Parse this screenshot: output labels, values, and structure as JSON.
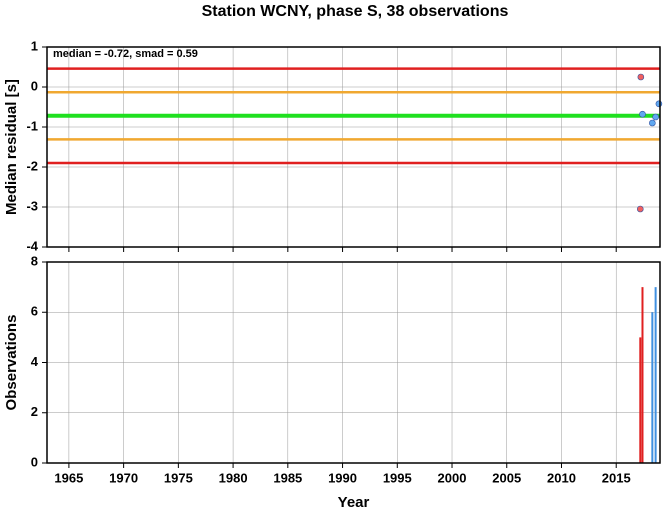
{
  "chart_data": [
    {
      "type": "scatter",
      "title": "Station WCNY, phase S, 38 observations",
      "annotation": "median = -0.72, smad = 0.59",
      "ylabel": "Median residual [s]",
      "xlim": [
        1963,
        2019
      ],
      "ylim": [
        -4,
        1
      ],
      "xticks": [
        1965,
        1970,
        1975,
        1980,
        1985,
        1990,
        1995,
        2000,
        2005,
        2010,
        2015
      ],
      "yticks": [
        -4,
        -3,
        -2,
        -1,
        0,
        1
      ],
      "grid": true,
      "hlines": [
        {
          "value": 0.46,
          "color": "#e02020"
        },
        {
          "value": -0.13,
          "color": "#f0a830"
        },
        {
          "value": -0.72,
          "color": "#20e020"
        },
        {
          "value": -1.31,
          "color": "#f0a830"
        },
        {
          "value": -1.9,
          "color": "#e02020"
        }
      ],
      "series": [
        {
          "color": "#f06060",
          "x": [
            2017.25,
            2017.2
          ],
          "values": [
            0.25,
            -3.05
          ]
        },
        {
          "color": "#60a8f0",
          "x": [
            2017.4,
            2018.3,
            2018.6,
            2018.9
          ],
          "values": [
            -0.68,
            -0.9,
            -0.75,
            -0.42
          ]
        }
      ]
    },
    {
      "type": "bar",
      "ylabel": "Observations",
      "xlabel": "Year",
      "xlim": [
        1963,
        2019
      ],
      "ylim": [
        0,
        8
      ],
      "xticks": [
        1965,
        1970,
        1975,
        1980,
        1985,
        1990,
        1995,
        2000,
        2005,
        2010,
        2015
      ],
      "yticks": [
        0,
        2,
        4,
        6,
        8
      ],
      "grid": true,
      "series": [
        {
          "color": "#e02020",
          "x": [
            2017.2,
            2017.4
          ],
          "values": [
            5,
            7
          ]
        },
        {
          "color": "#4090e0",
          "x": [
            2018.3,
            2018.6
          ],
          "values": [
            6,
            7
          ]
        }
      ]
    }
  ]
}
